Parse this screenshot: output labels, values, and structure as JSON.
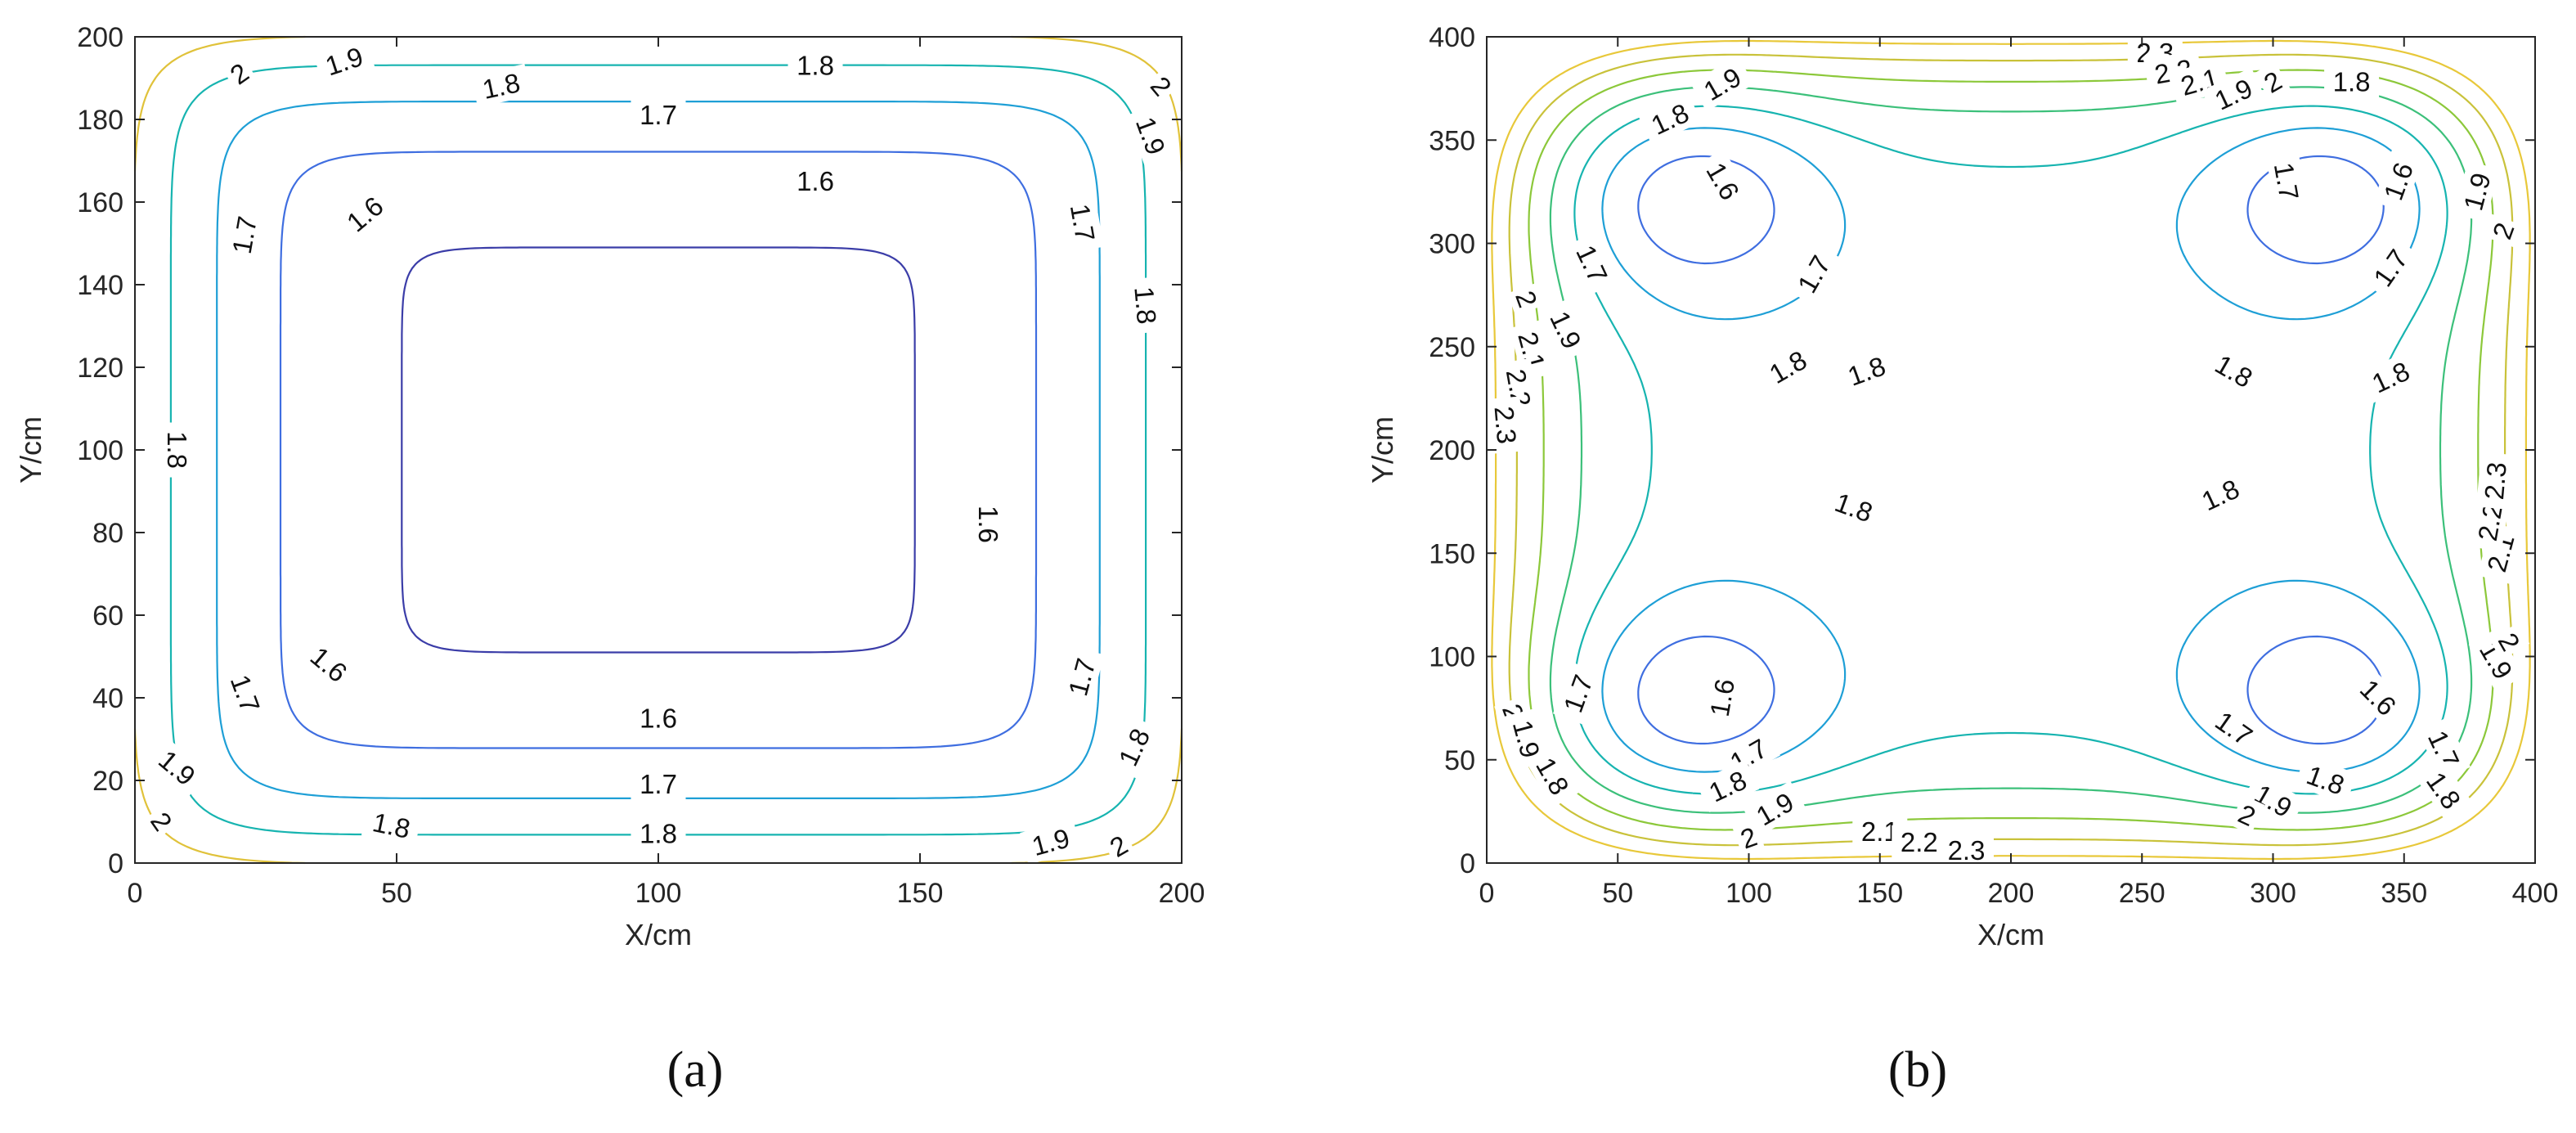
{
  "chart_data": [
    {
      "type": "contour",
      "caption": "(a)",
      "xlabel": "X/cm",
      "ylabel": "Y/cm",
      "xlim": [
        0,
        200
      ],
      "ylim": [
        0,
        200
      ],
      "xticks": [
        0,
        50,
        100,
        150,
        200
      ],
      "yticks": [
        0,
        20,
        40,
        60,
        80,
        100,
        120,
        140,
        160,
        180,
        200
      ],
      "levels": [
        1.6,
        1.7,
        1.8,
        1.9,
        2.0
      ],
      "level_labels": [
        "1.6",
        "1.7",
        "1.8",
        "1.9",
        "2"
      ],
      "contours": [
        {
          "level": 1.6,
          "color": "#3b3da8",
          "shape": "rounded-rectangle",
          "x_range": [
            37,
            163
          ],
          "y_range": [
            35,
            165
          ]
        },
        {
          "level": 1.7,
          "color": "#3f6ee0",
          "shape": "rounded-rectangle",
          "x_range": [
            18,
            182
          ],
          "y_range": [
            19,
            181
          ]
        },
        {
          "level": 1.8,
          "color": "#1e9fd6",
          "shape": "rounded-rectangle",
          "x_range": [
            7,
            193
          ],
          "y_range": [
            7,
            193
          ]
        },
        {
          "level": 1.9,
          "color": "#17b4b0",
          "shape": "corner-arcs"
        },
        {
          "level": 2.0,
          "color": "#e0c23a",
          "shape": "corner-arcs"
        }
      ]
    },
    {
      "type": "contour",
      "caption": "(b)",
      "xlabel": "X/cm",
      "ylabel": "Y/cm",
      "xlim": [
        0,
        400
      ],
      "ylim": [
        0,
        400
      ],
      "xticks": [
        0,
        50,
        100,
        150,
        200,
        250,
        300,
        350,
        400
      ],
      "yticks": [
        0,
        50,
        100,
        150,
        200,
        250,
        300,
        350,
        400
      ],
      "levels": [
        1.6,
        1.7,
        1.8,
        1.9,
        2.0,
        2.1,
        2.2,
        2.3
      ],
      "level_labels": [
        "1.6",
        "1.7",
        "1.8",
        "1.9",
        "2",
        "2.1",
        "2.2",
        "2.3"
      ],
      "minima_centers": [
        [
          75,
          75
        ],
        [
          325,
          75
        ],
        [
          75,
          325
        ],
        [
          325,
          325
        ]
      ],
      "contours": [
        {
          "level": 1.6,
          "color": "#3b3da8",
          "shape": "ellipses-around-minima"
        },
        {
          "level": 1.7,
          "color": "#3f6ee0",
          "shape": "ellipses-around-minima"
        },
        {
          "level": 1.8,
          "color": "#1e9fd6",
          "shape": "lobes-around-minima"
        },
        {
          "level": 1.9,
          "color": "#17b4b0",
          "shape": "edge-bands"
        },
        {
          "level": 2.0,
          "color": "#3cc07a",
          "shape": "edge-bands"
        },
        {
          "level": 2.1,
          "color": "#8cc83a",
          "shape": "edge-bands"
        },
        {
          "level": 2.2,
          "color": "#c9c23a",
          "shape": "edge-bands"
        },
        {
          "level": 2.3,
          "color": "#e8c83a",
          "shape": "edge-bands"
        }
      ]
    }
  ]
}
